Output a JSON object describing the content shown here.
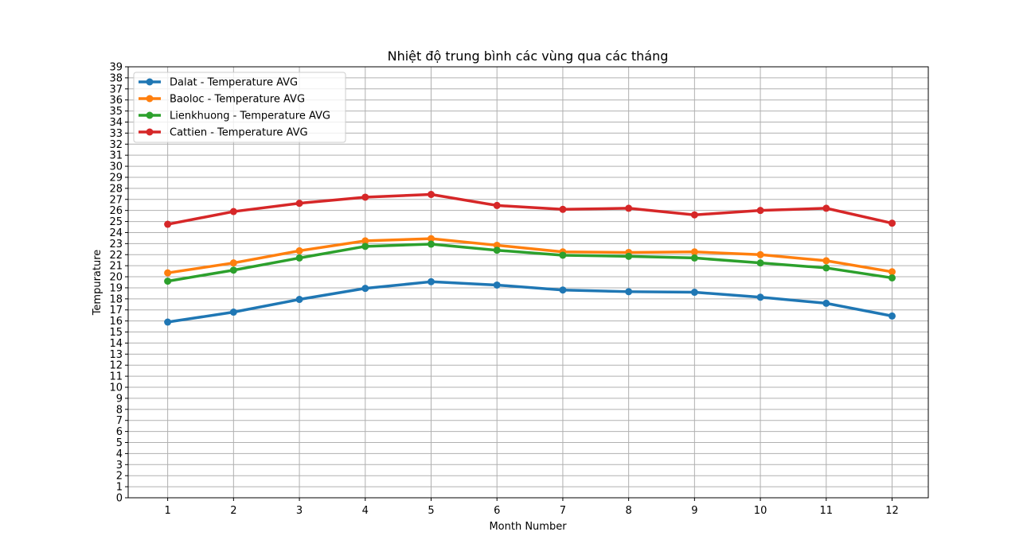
{
  "chart_data": {
    "type": "line",
    "title": "Nhiệt độ trung bình các vùng qua các tháng",
    "xlabel": "Month Number",
    "ylabel": "Tempurature",
    "x": [
      1,
      2,
      3,
      4,
      5,
      6,
      7,
      8,
      9,
      10,
      11,
      12
    ],
    "xlim": [
      0.4,
      12.55
    ],
    "ylim": [
      0,
      39
    ],
    "yticks": [
      0,
      1,
      2,
      3,
      4,
      5,
      6,
      7,
      8,
      9,
      10,
      11,
      12,
      13,
      14,
      15,
      16,
      17,
      18,
      19,
      20,
      21,
      22,
      23,
      24,
      25,
      26,
      27,
      28,
      29,
      30,
      31,
      32,
      33,
      34,
      35,
      36,
      37,
      38,
      39
    ],
    "grid": true,
    "legend_position": "top-left",
    "series": [
      {
        "name": "Dalat - Temperature AVG",
        "color": "#1f77b4",
        "values": [
          15.9,
          16.8,
          17.95,
          18.95,
          19.55,
          19.25,
          18.8,
          18.65,
          18.6,
          18.15,
          17.6,
          16.45
        ]
      },
      {
        "name": "Baoloc - Temperature AVG",
        "color": "#ff7f0e",
        "values": [
          20.35,
          21.25,
          22.35,
          23.25,
          23.45,
          22.85,
          22.25,
          22.2,
          22.25,
          22.0,
          21.45,
          20.45
        ]
      },
      {
        "name": "Lienkhuong - Temperature AVG",
        "color": "#2ca02c",
        "values": [
          19.6,
          20.6,
          21.7,
          22.75,
          22.95,
          22.4,
          21.95,
          21.85,
          21.7,
          21.25,
          20.8,
          19.9
        ]
      },
      {
        "name": "Cattien - Temperature AVG",
        "color": "#d62728",
        "values": [
          24.75,
          25.9,
          26.65,
          27.2,
          27.45,
          26.45,
          26.1,
          26.2,
          25.6,
          26.0,
          26.2,
          24.85
        ]
      }
    ]
  }
}
